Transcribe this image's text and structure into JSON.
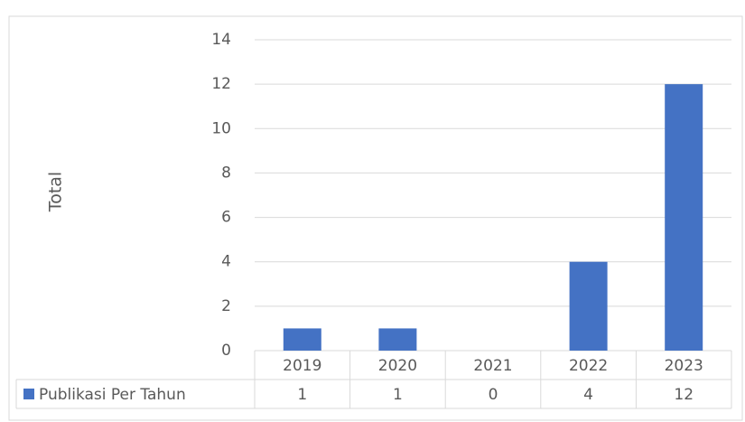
{
  "chart_data": {
    "type": "bar",
    "y_label": "Total",
    "categories": [
      "2019",
      "2020",
      "2021",
      "2022",
      "2023"
    ],
    "series": [
      {
        "name": "Publikasi Per Tahun",
        "color": "#4472c4",
        "values": [
          1,
          1,
          0,
          4,
          12
        ]
      }
    ],
    "ylim": [
      0,
      14
    ],
    "yticks": [
      0,
      2,
      4,
      6,
      8,
      10,
      12,
      14
    ],
    "grid": true,
    "data_table": true
  }
}
